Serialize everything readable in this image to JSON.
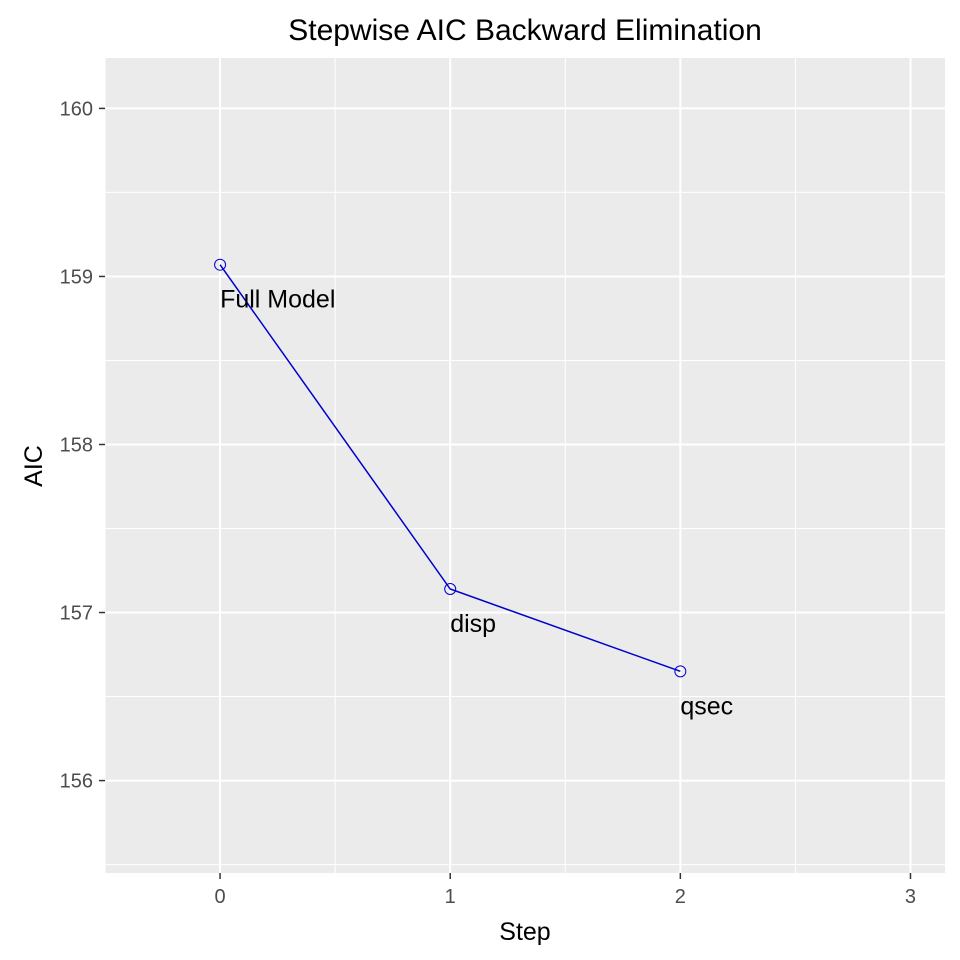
{
  "chart_data": {
    "type": "line",
    "title": "Stepwise AIC Backward Elimination",
    "xlabel": "Step",
    "ylabel": "AIC",
    "xlim": [
      -0.5,
      3.15
    ],
    "ylim": [
      155.45,
      160.3
    ],
    "x_ticks": [
      0,
      1,
      2,
      3
    ],
    "x_tick_labels": [
      "0",
      "1",
      "2",
      "3"
    ],
    "y_ticks": [
      156,
      157,
      158,
      159,
      160
    ],
    "y_tick_labels": [
      "156",
      "157",
      "158",
      "159",
      "160"
    ],
    "grid": true,
    "legend": "none",
    "series": [
      {
        "x": [
          0,
          1,
          2
        ],
        "y": [
          159.07,
          157.14,
          156.65
        ],
        "labels": [
          "Full Model",
          "disp",
          "qsec"
        ],
        "color": "#0000cd"
      }
    ],
    "colors": {
      "panel_background": "#ebebeb",
      "grid_line": "#ffffff",
      "tick_mark": "#333333",
      "tick_text": "#4d4d4d"
    }
  }
}
